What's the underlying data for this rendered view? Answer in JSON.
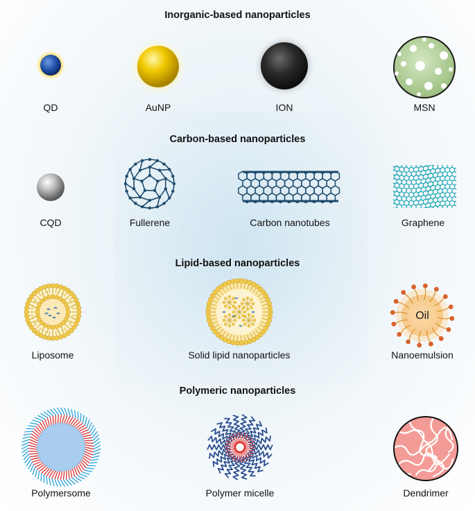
{
  "sections": [
    {
      "title": "Inorganic-based nanoparticles",
      "items": [
        "QD",
        "AuNP",
        "ION",
        "MSN"
      ]
    },
    {
      "title": "Carbon-based nanoparticles",
      "items": [
        "CQD",
        "Fullerene",
        "Carbon nanotubes",
        "Graphene"
      ]
    },
    {
      "title": "Lipid-based nanoparticles",
      "items": [
        "Liposome",
        "Solid lipid nanoparticles",
        "Nanoemulsion"
      ]
    },
    {
      "title": "Polymeric nanoparticles",
      "items": [
        "Polymersome",
        "Polymer micelle",
        "Dendrimer"
      ]
    }
  ],
  "nanoemulsion_core_text": "Oil",
  "colors": {
    "qd": "#1f4fa8",
    "aunp": "#f0c800",
    "ion": "#222222",
    "msn": "#a9c98f",
    "carbon": "#1e4a6b",
    "graphene": "#22a7b5",
    "lipid": "#f2c94c",
    "oil": "#f6c98a",
    "surfactant_head": "#d9622b",
    "polymer_red": "#e0322e",
    "polymer_blue": "#2b6cb0",
    "dendrimer": "#f08a85"
  }
}
